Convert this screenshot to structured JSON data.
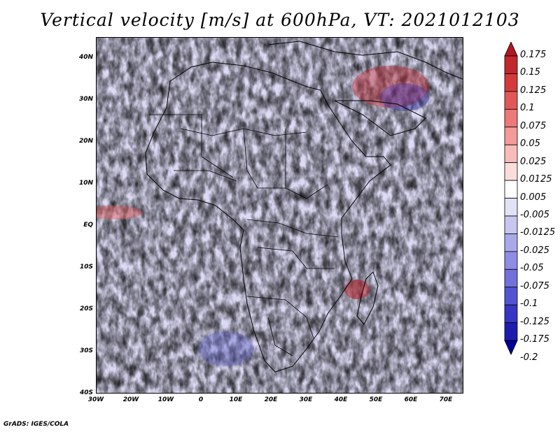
{
  "title": "Vertical velocity [m/s] at 600hPa, VT: 2021012103",
  "footer": "GrADS: IGES/COLA",
  "map": {
    "lat_labels": [
      "40N",
      "30N",
      "20N",
      "10N",
      "EQ",
      "10S",
      "20S",
      "30S",
      "40S"
    ],
    "lon_labels": [
      "30W",
      "20W",
      "10W",
      "0",
      "10E",
      "20E",
      "30E",
      "40E",
      "50E",
      "60E",
      "70E"
    ],
    "lat_range": [
      -40,
      45
    ],
    "lon_range": [
      -30,
      75
    ]
  },
  "colorbar": {
    "labels": [
      "0.175",
      "0.15",
      "0.125",
      "0.1",
      "0.075",
      "0.05",
      "0.025",
      "0.0125",
      "0.005",
      "-0.005",
      "-0.0125",
      "-0.025",
      "-0.05",
      "-0.075",
      "-0.1",
      "-0.125",
      "-0.175",
      "-0.2"
    ],
    "colors": [
      "#b0171f",
      "#c1272d",
      "#d53a3a",
      "#e25858",
      "#ec7a78",
      "#f29b98",
      "#f7bcba",
      "#fadcda",
      "#ffffff",
      "#e1e1f7",
      "#c6c6f0",
      "#a9a9ea",
      "#8d8de3",
      "#7171dc",
      "#5454d3",
      "#3636c4",
      "#1d1db0",
      "#000098"
    ]
  },
  "colors": {
    "positive": "#e06060",
    "negative": "#6b6bdc",
    "coast": "#000000"
  }
}
